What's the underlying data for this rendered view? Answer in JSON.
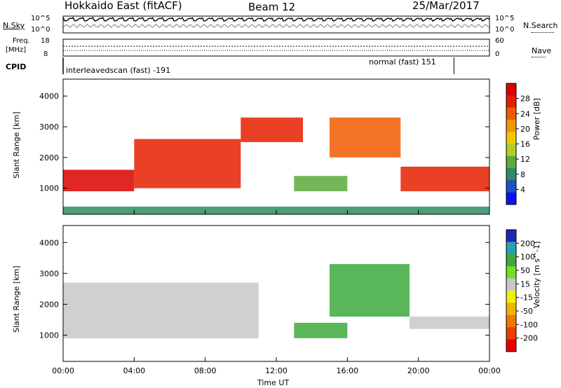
{
  "header": {
    "radar": "Hokkaido East (fitACF)",
    "beam": "Beam 12",
    "date": "25/Mar/2017"
  },
  "top_panels": {
    "nsky_label": "N.Sky",
    "nsky_tick_high": "10^5",
    "nsky_tick_low": "10^0",
    "nsearch_label": "N.Search",
    "nsearch_tick_high": "10^5",
    "nsearch_tick_low": "10^0",
    "freq_label": "Freq.",
    "freq_unit": "[MHz]",
    "freq_tick_high": "18",
    "freq_tick_low": "8",
    "nave_label": "Nave",
    "nave_tick_high": "60",
    "nave_tick_low": "0",
    "cpid_label": "CPID",
    "cpid_segments": [
      {
        "name": "interleavedscan (fast)",
        "id": "-191",
        "start": "00:00",
        "end": "22:00"
      },
      {
        "name": "normal (fast)",
        "id": "151",
        "start": "22:00",
        "end": "00:00"
      }
    ],
    "cpid_text_1": "interleavedscan (fast) -191",
    "cpid_text_2": "normal (fast) 151"
  },
  "chart_data": [
    {
      "type": "heatmap",
      "title": "",
      "xlabel": "Time UT",
      "ylabel": "Slant Range [km]",
      "x_ticks": [
        "00:00",
        "04:00",
        "08:00",
        "12:00",
        "16:00",
        "20:00",
        "00:00"
      ],
      "y_ticks": [
        1000,
        2000,
        3000,
        4000
      ],
      "ylim": [
        150,
        4550
      ],
      "colorbar": {
        "label": "Power [dB]",
        "ticks": [
          4,
          8,
          12,
          16,
          20,
          24,
          28
        ],
        "colors": [
          "#0a14f0",
          "#1e50c8",
          "#2e8c64",
          "#5aaa3c",
          "#b4cc28",
          "#f0c800",
          "#f09600",
          "#f05a00",
          "#e61e00",
          "#dc0000"
        ]
      },
      "features": [
        {
          "time_range": [
            "00:00",
            "04:00"
          ],
          "range_km": [
            900,
            1600
          ],
          "power_db": 28
        },
        {
          "time_range": [
            "04:00",
            "10:00"
          ],
          "range_km": [
            1000,
            2600
          ],
          "power_db": 26
        },
        {
          "time_range": [
            "10:00",
            "13:30"
          ],
          "range_km": [
            2500,
            3300
          ],
          "power_db": 26
        },
        {
          "time_range": [
            "15:00",
            "19:00"
          ],
          "range_km": [
            2000,
            3300
          ],
          "power_db": 24
        },
        {
          "time_range": [
            "19:00",
            "00:00"
          ],
          "range_km": [
            900,
            1700
          ],
          "power_db": 27
        },
        {
          "time_range": [
            "13:00",
            "16:00"
          ],
          "range_km": [
            900,
            1400
          ],
          "power_db": 12
        },
        {
          "time_range": [
            "00:00",
            "00:00"
          ],
          "range_km": [
            150,
            400
          ],
          "power_db": 10
        }
      ]
    },
    {
      "type": "heatmap",
      "title": "",
      "xlabel": "Time UT",
      "ylabel": "Slant Range [km]",
      "x_ticks": [
        "00:00",
        "04:00",
        "08:00",
        "12:00",
        "16:00",
        "20:00",
        "00:00"
      ],
      "y_ticks": [
        1000,
        2000,
        3000,
        4000
      ],
      "ylim": [
        150,
        4550
      ],
      "colorbar": {
        "label": "Velocity [m s^-1]",
        "ticks": [
          200,
          100,
          50,
          15,
          -15,
          -50,
          -100,
          -200
        ],
        "colors": [
          "#1e28b4",
          "#28a0b4",
          "#3caa3c",
          "#78dc28",
          "#c8c8c8",
          "#f0f000",
          "#f0b400",
          "#f07800",
          "#f03c00",
          "#e60000"
        ]
      },
      "features": [
        {
          "time_range": [
            "00:00",
            "11:00"
          ],
          "range_km": [
            900,
            2700
          ],
          "velocity_ms": 0
        },
        {
          "time_range": [
            "15:00",
            "19:30"
          ],
          "range_km": [
            1600,
            3300
          ],
          "velocity_ms": 60
        },
        {
          "time_range": [
            "19:30",
            "00:00"
          ],
          "range_km": [
            1200,
            1600
          ],
          "velocity_ms": 0
        },
        {
          "time_range": [
            "13:00",
            "16:00"
          ],
          "range_km": [
            900,
            1400
          ],
          "velocity_ms": 60
        }
      ]
    }
  ]
}
